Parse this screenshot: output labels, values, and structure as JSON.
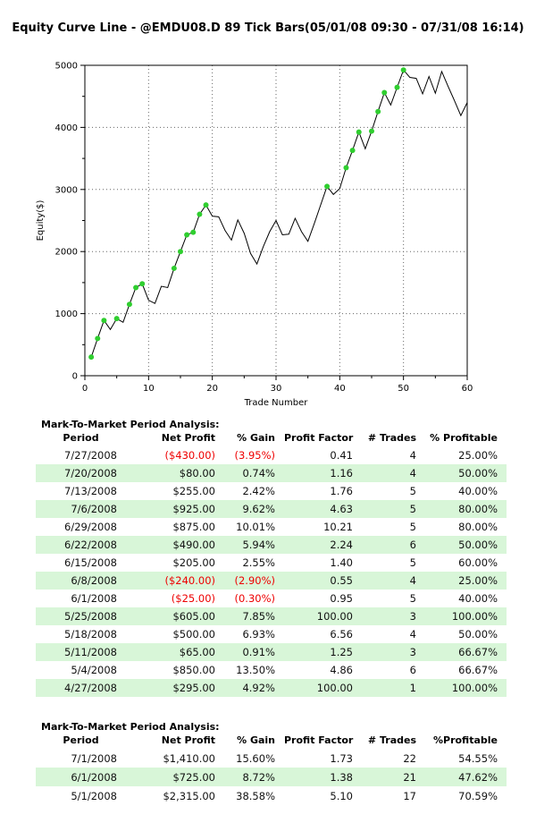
{
  "chart_data": {
    "type": "line",
    "title": "Equity Curve Line - @EMDU08.D 89 Tick Bars(05/01/08 09:30 - 07/31/08 16:14)",
    "xlabel": "Trade Number",
    "ylabel": "Equity($)",
    "xlim": [
      0,
      60
    ],
    "ylim": [
      0,
      5000
    ],
    "x_ticks": [
      0,
      10,
      20,
      30,
      40,
      50,
      60
    ],
    "y_ticks": [
      0,
      1000,
      2000,
      3000,
      4000,
      5000
    ],
    "x_minor_ticks": [
      5,
      15,
      25,
      35,
      45,
      55
    ],
    "y_minor_ticks": [
      500,
      1500,
      2500,
      3500,
      4500
    ],
    "grid": "dotted",
    "legend": "none",
    "series": [
      {
        "name": "Equity",
        "x": [
          1,
          2,
          3,
          4,
          5,
          6,
          7,
          8,
          9,
          10,
          11,
          12,
          13,
          14,
          15,
          16,
          17,
          18,
          19,
          20,
          21,
          22,
          23,
          24,
          25,
          26,
          27,
          28,
          29,
          30,
          31,
          32,
          33,
          34,
          35,
          36,
          37,
          38,
          39,
          40,
          41,
          42,
          43,
          44,
          45,
          46,
          47,
          48,
          49,
          50,
          51,
          52,
          53,
          54,
          55,
          56,
          57,
          58,
          59,
          60
        ],
        "values": [
          300,
          600,
          890,
          745,
          920,
          860,
          1150,
          1420,
          1480,
          1215,
          1165,
          1440,
          1420,
          1730,
          2000,
          2270,
          2310,
          2600,
          2750,
          2570,
          2560,
          2340,
          2185,
          2510,
          2295,
          1970,
          1800,
          2080,
          2320,
          2500,
          2270,
          2280,
          2535,
          2320,
          2165,
          2450,
          2750,
          3050,
          2920,
          3015,
          3350,
          3630,
          3925,
          3655,
          3940,
          4255,
          4560,
          4360,
          4645,
          4925,
          4805,
          4790,
          4540,
          4820,
          4550,
          4900,
          4660,
          4430,
          4190,
          4400
        ]
      }
    ],
    "winning_trade_markers": [
      1,
      2,
      3,
      5,
      7,
      8,
      9,
      14,
      15,
      16,
      17,
      18,
      19,
      38,
      41,
      42,
      43,
      45,
      46,
      47,
      49,
      50
    ],
    "colors": {
      "line": "#000000",
      "marker": "#2fce2f",
      "grid": "#666666",
      "axis": "#000000"
    }
  },
  "tables": [
    {
      "heading": "Mark-To-Market Period Analysis:",
      "columns": [
        "Period",
        "Net Profit",
        "% Gain",
        "Profit Factor",
        "# Trades",
        "% Profitable"
      ],
      "rows": [
        {
          "cells": [
            "7/27/2008",
            "($430.00)",
            "(3.95%)",
            "0.41",
            "4",
            "25.00%"
          ],
          "negative": true
        },
        {
          "cells": [
            "7/20/2008",
            "$80.00",
            "0.74%",
            "1.16",
            "4",
            "50.00%"
          ],
          "negative": false
        },
        {
          "cells": [
            "7/13/2008",
            "$255.00",
            "2.42%",
            "1.76",
            "5",
            "40.00%"
          ],
          "negative": false
        },
        {
          "cells": [
            "7/6/2008",
            "$925.00",
            "9.62%",
            "4.63",
            "5",
            "80.00%"
          ],
          "negative": false
        },
        {
          "cells": [
            "6/29/2008",
            "$875.00",
            "10.01%",
            "10.21",
            "5",
            "80.00%"
          ],
          "negative": false
        },
        {
          "cells": [
            "6/22/2008",
            "$490.00",
            "5.94%",
            "2.24",
            "6",
            "50.00%"
          ],
          "negative": false
        },
        {
          "cells": [
            "6/15/2008",
            "$205.00",
            "2.55%",
            "1.40",
            "5",
            "60.00%"
          ],
          "negative": false
        },
        {
          "cells": [
            "6/8/2008",
            "($240.00)",
            "(2.90%)",
            "0.55",
            "4",
            "25.00%"
          ],
          "negative": true
        },
        {
          "cells": [
            "6/1/2008",
            "($25.00)",
            "(0.30%)",
            "0.95",
            "5",
            "40.00%"
          ],
          "negative": true
        },
        {
          "cells": [
            "5/25/2008",
            "$605.00",
            "7.85%",
            "100.00",
            "3",
            "100.00%"
          ],
          "negative": false
        },
        {
          "cells": [
            "5/18/2008",
            "$500.00",
            "6.93%",
            "6.56",
            "4",
            "50.00%"
          ],
          "negative": false
        },
        {
          "cells": [
            "5/11/2008",
            "$65.00",
            "0.91%",
            "1.25",
            "3",
            "66.67%"
          ],
          "negative": false
        },
        {
          "cells": [
            "5/4/2008",
            "$850.00",
            "13.50%",
            "4.86",
            "6",
            "66.67%"
          ],
          "negative": false
        },
        {
          "cells": [
            "4/27/2008",
            "$295.00",
            "4.92%",
            "100.00",
            "1",
            "100.00%"
          ],
          "negative": false
        }
      ]
    },
    {
      "heading": "Mark-To-Market Period Analysis:",
      "columns": [
        "Period",
        "Net Profit",
        "% Gain",
        "Profit Factor",
        "# Trades",
        "%Profitable"
      ],
      "rows": [
        {
          "cells": [
            "7/1/2008",
            "$1,410.00",
            "15.60%",
            "1.73",
            "22",
            "54.55%"
          ],
          "negative": false
        },
        {
          "cells": [
            "6/1/2008",
            "$725.00",
            "8.72%",
            "1.38",
            "21",
            "47.62%"
          ],
          "negative": false
        },
        {
          "cells": [
            "5/1/2008",
            "$2,315.00",
            "38.58%",
            "5.10",
            "17",
            "70.59%"
          ],
          "negative": false
        }
      ]
    }
  ],
  "style_colors": {
    "stripe_row": "#d8f6d8",
    "negative_text": "#ee0000"
  }
}
